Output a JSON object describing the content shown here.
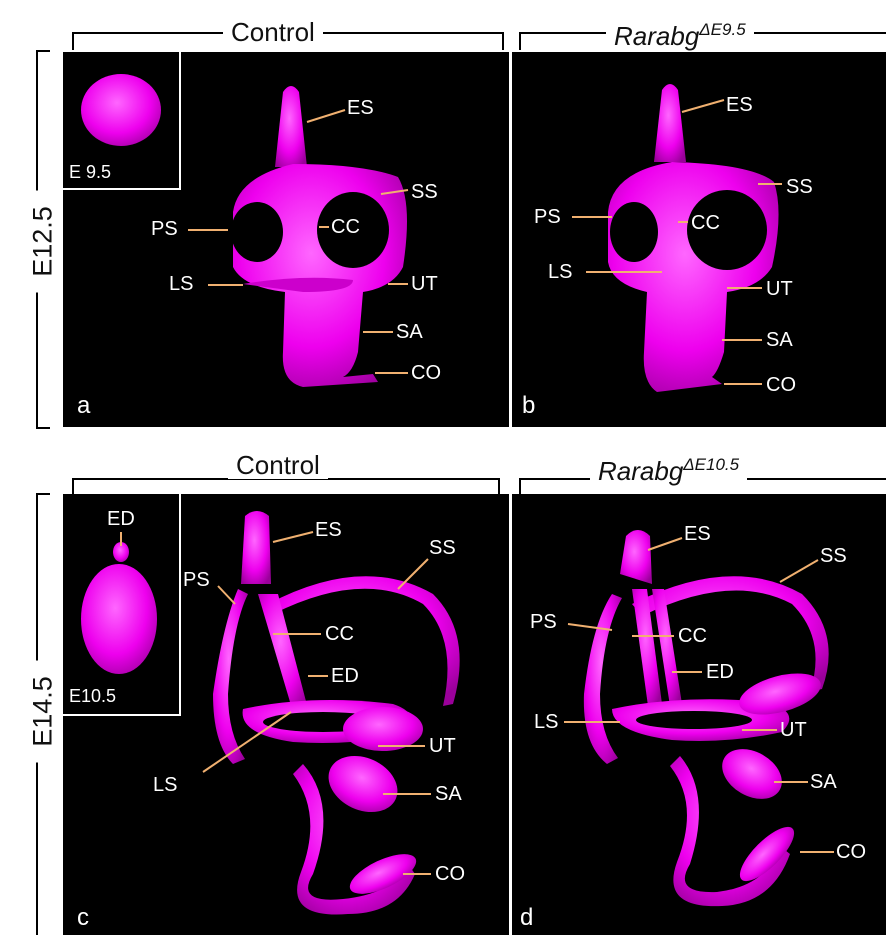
{
  "headers": {
    "control": "Control",
    "mutant_gene": "Rarabg",
    "mutant_sup_top": "ΔE9.5",
    "mutant_sup_bottom": "ΔE10.5"
  },
  "rows": {
    "top": "E12.5",
    "bottom": "E14.5"
  },
  "panels": {
    "a": {
      "label": "a",
      "inset_label": "E 9.5",
      "annotations": [
        "ES",
        "SS",
        "PS",
        "CC",
        "LS",
        "UT",
        "SA",
        "CO"
      ]
    },
    "b": {
      "label": "b",
      "annotations": [
        "ES",
        "SS",
        "PS",
        "CC",
        "LS",
        "UT",
        "SA",
        "CO"
      ]
    },
    "c": {
      "label": "c",
      "inset_label": "E10.5",
      "inset_annotation": "ED",
      "annotations": [
        "ES",
        "SS",
        "PS",
        "CC",
        "ED",
        "UT",
        "LS",
        "SA",
        "CO"
      ]
    },
    "d": {
      "label": "d",
      "annotations": [
        "ES",
        "SS",
        "PS",
        "CC",
        "ED",
        "LS",
        "UT",
        "SA",
        "CO"
      ]
    }
  },
  "colors": {
    "structure": "#ee00ee",
    "leader": "#f0b070",
    "background": "#000000"
  }
}
